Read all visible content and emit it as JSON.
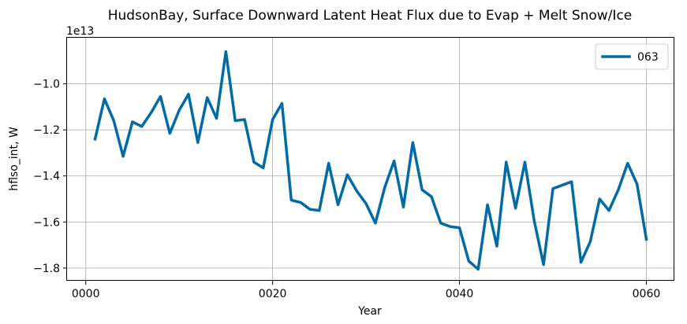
{
  "chart_data": {
    "type": "line",
    "title": "HudsonBay, Surface Downward Latent Heat Flux due to Evap + Melt Snow/Ice",
    "xlabel": "Year",
    "ylabel": "hflso_int, W",
    "offset_text": "1e13",
    "xlim": [
      -2,
      63
    ],
    "ylim": [
      -18.55,
      -8.0
    ],
    "xticks": [
      0,
      20,
      40,
      60
    ],
    "xtick_labels": [
      "0000",
      "0020",
      "0040",
      "0060"
    ],
    "yticks": [
      -18,
      -16,
      -14,
      -12,
      -10
    ],
    "ytick_labels": [
      "−1.8",
      "−1.6",
      "−1.4",
      "−1.2",
      "−1.0"
    ],
    "grid": true,
    "legend_position": "top-right",
    "colors": {
      "series": "#006BA4",
      "grid": "#b0b0b0"
    },
    "series": [
      {
        "name": "063",
        "x": [
          1,
          2,
          3,
          4,
          5,
          6,
          7,
          8,
          9,
          10,
          11,
          12,
          13,
          14,
          15,
          16,
          17,
          18,
          19,
          20,
          21,
          22,
          23,
          24,
          25,
          26,
          27,
          28,
          29,
          30,
          31,
          32,
          33,
          34,
          35,
          36,
          37,
          38,
          39,
          40,
          41,
          42,
          43,
          44,
          45,
          46,
          47,
          48,
          49,
          50,
          51,
          52,
          53,
          54,
          55,
          56,
          57,
          58,
          59,
          60
        ],
        "y": [
          -12.4,
          -10.65,
          -11.6,
          -13.15,
          -11.65,
          -11.85,
          -11.25,
          -10.55,
          -12.15,
          -11.15,
          -10.45,
          -12.55,
          -10.6,
          -11.5,
          -8.6,
          -11.6,
          -11.55,
          -13.4,
          -13.65,
          -11.55,
          -10.85,
          -15.05,
          -15.15,
          -15.45,
          -15.5,
          -13.45,
          -15.25,
          -13.95,
          -14.65,
          -15.2,
          -16.05,
          -14.5,
          -13.35,
          -15.35,
          -12.55,
          -14.6,
          -14.9,
          -16.05,
          -16.2,
          -16.25,
          -17.7,
          -18.05,
          -15.25,
          -17.05,
          -13.4,
          -15.4,
          -13.4,
          -15.95,
          -17.85,
          -14.55,
          -14.4,
          -14.25,
          -17.75,
          -16.85,
          -15.0,
          -15.5,
          -14.6,
          -13.45,
          -14.35,
          -16.75
        ]
      }
    ]
  }
}
